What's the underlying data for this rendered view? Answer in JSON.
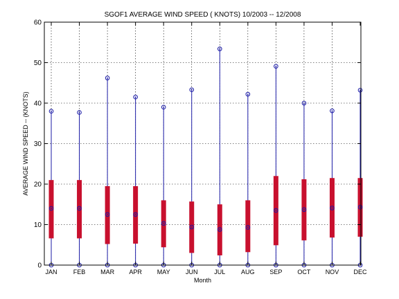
{
  "chart_data": {
    "type": "box",
    "title": "SGOF1  AVERAGE WIND SPEED ( KNOTS) 10/2003 -- 12/2008",
    "xlabel": "Month",
    "ylabel": "AVERAGE WIND SPEED -- (KNOTS)",
    "ylim": [
      0,
      60
    ],
    "yticks": [
      0,
      10,
      20,
      30,
      40,
      50,
      60
    ],
    "grid": true,
    "categories": [
      "JAN",
      "FEB",
      "MAR",
      "APR",
      "MAY",
      "JUN",
      "JUL",
      "AUG",
      "SEP",
      "OCT",
      "NOV",
      "DEC"
    ],
    "min": [
      0,
      0,
      0,
      0,
      0,
      0,
      0,
      0,
      0,
      0,
      0,
      0
    ],
    "max": [
      38,
      37.7,
      46.2,
      41.5,
      39,
      43.3,
      53.4,
      42.2,
      49.1,
      40,
      38.1,
      43.2
    ],
    "q1": [
      6.6,
      6.6,
      5.2,
      5.3,
      4.4,
      3,
      2.4,
      3.2,
      4.9,
      6.1,
      6.8,
      7
    ],
    "q3": [
      21,
      21,
      19.5,
      19.5,
      16,
      15.7,
      15,
      16,
      22,
      21.2,
      21.5,
      21.5
    ],
    "mean": [
      14,
      14,
      12.5,
      12.5,
      10.3,
      9.4,
      8.8,
      9.3,
      13.5,
      13.7,
      14.1,
      14.3
    ],
    "colors": {
      "whisker": "#1a1aa6",
      "box": "#c8102e",
      "marker": "#1a1aa6",
      "grid": "#000000",
      "axis": "#000000"
    }
  }
}
